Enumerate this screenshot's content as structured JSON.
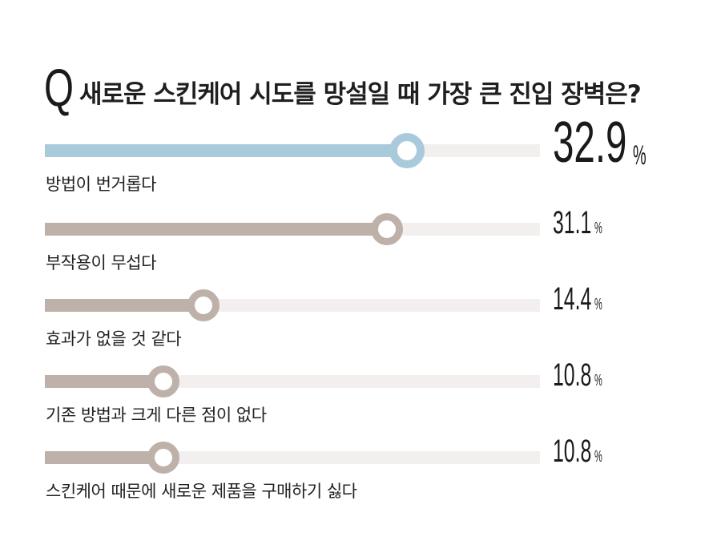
{
  "title": {
    "q": "Q",
    "text": "새로운 스킨케어 시도를 망설일 때 가장 큰 진입 장벽은?"
  },
  "chart_data": {
    "type": "bar",
    "orientation": "horizontal",
    "categories": [
      "방법이 번거롭다",
      "부작용이 무섭다",
      "효과가 없을 것 같다",
      "기존 방법과 크게 다른 점이 없다",
      "스킨케어 때문에 새로운 제품을 구매하기 싫다"
    ],
    "values": [
      32.9,
      31.1,
      14.4,
      10.8,
      10.8
    ],
    "value_labels": [
      "32.9",
      "31.1",
      "14.4",
      "10.8",
      "10.8"
    ],
    "unit": "%",
    "xlim": [
      0,
      45
    ],
    "colors": {
      "highlight": "#a9cadb",
      "default": "#bdb1aa",
      "track": "#f3efee"
    }
  }
}
